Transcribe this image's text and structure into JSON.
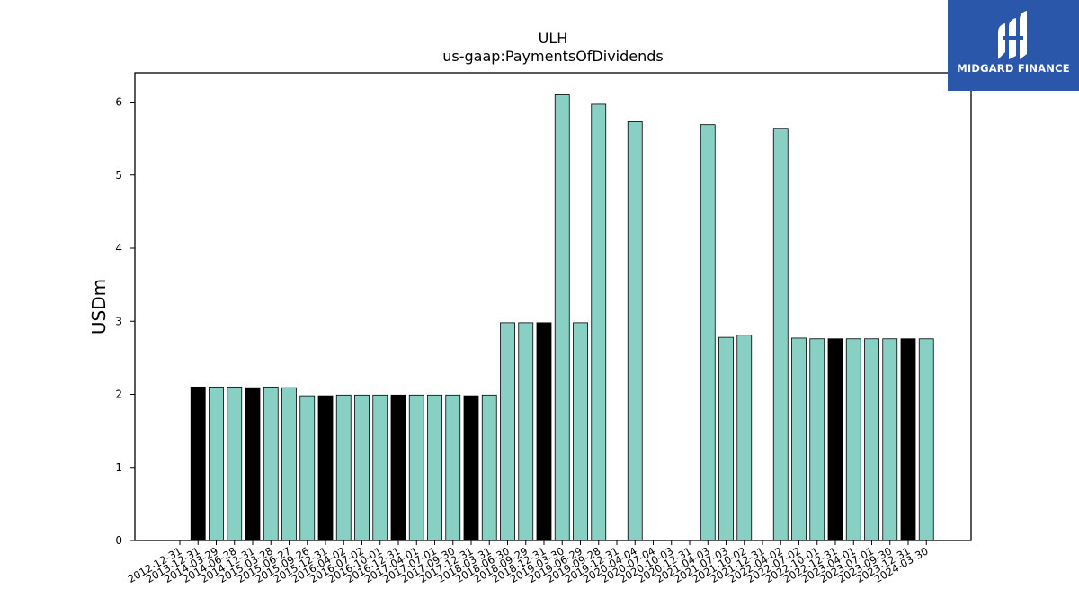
{
  "chart_data": {
    "type": "bar",
    "title": "ULH",
    "subtitle": "us-gaap:PaymentsOfDividends",
    "xlabel": "",
    "ylabel": "USDm",
    "ylim": [
      0,
      6.4
    ],
    "yticks": [
      0,
      1,
      2,
      3,
      4,
      5,
      6
    ],
    "grid": false,
    "legend": "none",
    "colors": {
      "quarter": "#88d0c3",
      "year_end": "#000000",
      "edge": "#000000"
    },
    "categories": [
      "2012-12-31",
      "2013-12-31",
      "2014-03-29",
      "2014-06-28",
      "2014-12-31",
      "2015-03-28",
      "2015-06-27",
      "2015-09-26",
      "2015-12-31",
      "2016-04-02",
      "2016-07-02",
      "2016-10-01",
      "2016-12-31",
      "2017-04-01",
      "2017-07-01",
      "2017-09-30",
      "2017-12-31",
      "2018-03-31",
      "2018-06-30",
      "2018-09-29",
      "2018-12-31",
      "2019-03-30",
      "2019-06-29",
      "2019-09-28",
      "2019-12-31",
      "2020-04-04",
      "2020-07-04",
      "2020-10-03",
      "2020-12-31",
      "2021-04-03",
      "2021-07-03",
      "2021-10-02",
      "2021-12-31",
      "2022-04-02",
      "2022-07-02",
      "2022-10-01",
      "2022-12-31",
      "2023-04-01",
      "2023-07-01",
      "2023-09-30",
      "2023-12-31",
      "2024-03-30"
    ],
    "values": [
      null,
      2.1,
      2.1,
      2.1,
      2.09,
      2.1,
      2.09,
      1.98,
      1.98,
      1.99,
      1.99,
      1.99,
      1.99,
      1.99,
      1.99,
      1.99,
      1.98,
      1.99,
      2.98,
      2.98,
      2.98,
      6.1,
      2.98,
      5.97,
      null,
      5.73,
      null,
      null,
      null,
      5.69,
      2.78,
      2.81,
      null,
      5.64,
      2.77,
      2.76,
      2.76,
      2.76,
      2.76,
      2.76,
      2.76,
      2.76
    ],
    "highlight": [
      false,
      true,
      false,
      false,
      true,
      false,
      false,
      false,
      true,
      false,
      false,
      false,
      true,
      false,
      false,
      false,
      true,
      false,
      false,
      false,
      true,
      false,
      false,
      false,
      false,
      false,
      false,
      false,
      false,
      false,
      false,
      false,
      false,
      false,
      false,
      false,
      true,
      false,
      false,
      false,
      true,
      false
    ]
  },
  "logo": {
    "text": "MIDGARD FINANCE",
    "icon": "midgard-logo-icon"
  }
}
